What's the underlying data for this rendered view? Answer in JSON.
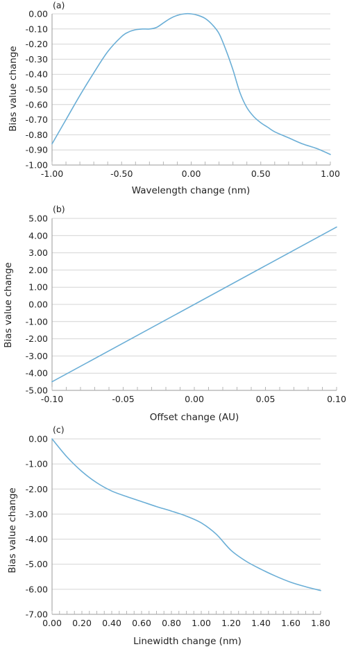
{
  "style": {
    "series_color": "#6aaed6",
    "grid_color": "#d4d4d4",
    "axis_color": "#9a9a9a"
  },
  "chart_data": [
    {
      "type": "line",
      "panel_label": "(a)",
      "xlabel": "Wavelength change (nm)",
      "ylabel": "Bias value change",
      "xlim": [
        -1.0,
        1.0
      ],
      "ylim": [
        -1.0,
        0.0
      ],
      "x_ticks": [
        -1.0,
        -0.5,
        0.0,
        0.5,
        1.0
      ],
      "y_ticks": [
        0.0,
        -0.1,
        -0.2,
        -0.3,
        -0.4,
        -0.5,
        -0.6,
        -0.7,
        -0.8,
        -0.9,
        -1.0
      ],
      "x_tick_labels": [
        "-1.00",
        "-0.50",
        "0.00",
        "0.50",
        "1.00"
      ],
      "y_tick_labels": [
        "0.00",
        "-0.10",
        "-0.20",
        "-0.30",
        "-0.40",
        "-0.50",
        "-0.60",
        "-0.70",
        "-0.80",
        "-0.90",
        "-1.00"
      ],
      "x_minor_step": 0.1,
      "grid": "horizontal",
      "series": [
        {
          "x": [
            -1.0,
            -0.9,
            -0.8,
            -0.7,
            -0.6,
            -0.5,
            -0.45,
            -0.4,
            -0.35,
            -0.3,
            -0.25,
            -0.2,
            -0.15,
            -0.1,
            -0.05,
            0.0,
            0.05,
            0.1,
            0.15,
            0.2,
            0.25,
            0.3,
            0.35,
            0.4,
            0.45,
            0.5,
            0.55,
            0.6,
            0.7,
            0.8,
            0.9,
            1.0
          ],
          "y": [
            -0.86,
            -0.7,
            -0.54,
            -0.39,
            -0.25,
            -0.15,
            -0.12,
            -0.105,
            -0.1,
            -0.1,
            -0.09,
            -0.06,
            -0.03,
            -0.01,
            0.0,
            0.0,
            -0.01,
            -0.03,
            -0.07,
            -0.13,
            -0.24,
            -0.37,
            -0.52,
            -0.62,
            -0.68,
            -0.72,
            -0.75,
            -0.78,
            -0.82,
            -0.86,
            -0.89,
            -0.93
          ]
        }
      ]
    },
    {
      "type": "line",
      "panel_label": "(b)",
      "xlabel": "Offset change (AU)",
      "ylabel": "Bias value change",
      "xlim": [
        -0.1,
        0.1
      ],
      "ylim": [
        -5.0,
        5.0
      ],
      "x_ticks": [
        -0.1,
        -0.05,
        0.0,
        0.05,
        0.1
      ],
      "y_ticks": [
        5.0,
        4.0,
        3.0,
        2.0,
        1.0,
        0.0,
        -1.0,
        -2.0,
        -3.0,
        -4.0,
        -5.0
      ],
      "x_tick_labels": [
        "-0.10",
        "-0.05",
        "0.00",
        "0.05",
        "0.10"
      ],
      "y_tick_labels": [
        "5.00",
        "4.00",
        "3.00",
        "2.00",
        "1.00",
        "0.00",
        "-1.00",
        "-2.00",
        "-3.00",
        "-4.00",
        "-5.00"
      ],
      "x_minor_step": 0.01,
      "grid": "horizontal",
      "series": [
        {
          "x": [
            -0.1,
            0.1
          ],
          "y": [
            -4.5,
            4.5
          ]
        }
      ]
    },
    {
      "type": "line",
      "panel_label": "(c)",
      "xlabel": "Linewidth change (nm)",
      "ylabel": "Bias value change",
      "xlim": [
        0.0,
        1.8
      ],
      "ylim": [
        -7.0,
        0.0
      ],
      "x_ticks": [
        0.0,
        0.2,
        0.4,
        0.6,
        0.8,
        1.0,
        1.2,
        1.4,
        1.6,
        1.8
      ],
      "y_ticks": [
        0.0,
        -1.0,
        -2.0,
        -3.0,
        -4.0,
        -5.0,
        -6.0,
        -7.0
      ],
      "x_tick_labels": [
        "0.00",
        "0.20",
        "0.40",
        "0.60",
        "0.80",
        "1.00",
        "1.20",
        "1.40",
        "1.60",
        "1.80"
      ],
      "y_tick_labels": [
        "0.00",
        "-1.00",
        "-2.00",
        "-3.00",
        "-4.00",
        "-5.00",
        "-6.00",
        "-7.00"
      ],
      "x_minor_step": 0.05,
      "grid": "horizontal",
      "series": [
        {
          "x": [
            0.0,
            0.1,
            0.2,
            0.3,
            0.4,
            0.5,
            0.6,
            0.7,
            0.8,
            0.9,
            1.0,
            1.1,
            1.2,
            1.3,
            1.4,
            1.5,
            1.6,
            1.7,
            1.8
          ],
          "y": [
            0.0,
            -0.72,
            -1.3,
            -1.75,
            -2.08,
            -2.3,
            -2.5,
            -2.7,
            -2.88,
            -3.08,
            -3.35,
            -3.8,
            -4.45,
            -4.88,
            -5.2,
            -5.48,
            -5.72,
            -5.9,
            -6.05
          ]
        }
      ]
    }
  ]
}
